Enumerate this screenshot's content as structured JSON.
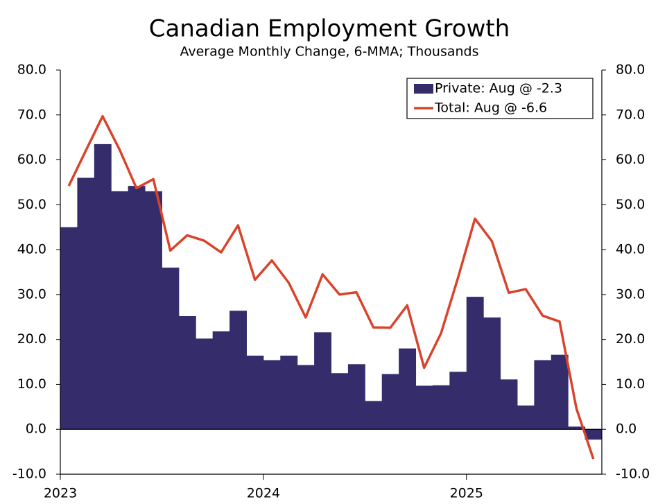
{
  "chart_data": {
    "type": "bar_line",
    "title": "Canadian Employment Growth",
    "subtitle": "Average Monthly Change, 6-MMA; Thousands",
    "categories": [
      "2023",
      null,
      null,
      null,
      null,
      null,
      null,
      null,
      null,
      null,
      null,
      null,
      "2024",
      null,
      null,
      null,
      null,
      null,
      null,
      null,
      null,
      null,
      null,
      null,
      "2025",
      null,
      null,
      null,
      null,
      null,
      null,
      null
    ],
    "series": [
      {
        "name": "Private: Aug @ -2.3",
        "kind": "bar",
        "color": "#352c6b",
        "values": [
          45,
          56,
          63.5,
          53,
          54.2,
          53,
          36,
          25.2,
          20.2,
          21.8,
          26.4,
          16.4,
          15.4,
          16.4,
          14.3,
          21.6,
          12.5,
          14.5,
          6.3,
          12.3,
          18,
          9.7,
          9.8,
          12.8,
          29.5,
          24.9,
          11.1,
          5.3,
          15.4,
          16.6,
          0.6,
          -2.3
        ]
      },
      {
        "name": "Total: Aug @ -6.6",
        "kind": "line",
        "color": "#d9432c",
        "values": [
          54.2,
          62,
          69.7,
          62.3,
          53.7,
          55.7,
          39.8,
          43.2,
          42,
          39.4,
          45.4,
          33.3,
          37.6,
          32.6,
          24.9,
          34.5,
          30,
          30.5,
          22.7,
          22.6,
          27.6,
          13.7,
          21.4,
          33.7,
          46.9,
          41.9,
          30.4,
          31.2,
          25.3,
          24,
          4.6,
          -6.6
        ]
      }
    ],
    "ylim": [
      -10,
      80
    ],
    "yticks": [
      {
        "value": -10,
        "label": "-10.0"
      },
      {
        "value": 0,
        "label": "0.0"
      },
      {
        "value": 10,
        "label": "10.0"
      },
      {
        "value": 20,
        "label": "20.0"
      },
      {
        "value": 30,
        "label": "30.0"
      },
      {
        "value": 40,
        "label": "40.0"
      },
      {
        "value": 50,
        "label": "50.0"
      },
      {
        "value": 60,
        "label": "60.0"
      },
      {
        "value": 70,
        "label": "70.0"
      },
      {
        "value": 80,
        "label": "80.0"
      }
    ],
    "y2lim": [
      -10,
      80
    ],
    "y2ticks": [
      {
        "value": -10,
        "label": "-10.0"
      },
      {
        "value": 0,
        "label": "0.0"
      },
      {
        "value": 10,
        "label": "10.0"
      },
      {
        "value": 20,
        "label": "20.0"
      },
      {
        "value": 30,
        "label": "30.0"
      },
      {
        "value": 40,
        "label": "40.0"
      },
      {
        "value": 50,
        "label": "50.0"
      },
      {
        "value": 60,
        "label": "60.0"
      },
      {
        "value": 70,
        "label": "70.0"
      },
      {
        "value": 80,
        "label": "80.0"
      }
    ],
    "legend": "top-right"
  }
}
